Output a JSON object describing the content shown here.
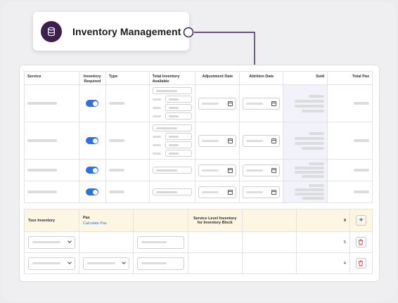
{
  "header": {
    "title": "Inventory Management",
    "icon": "database-icon",
    "accent": "#3d1f4e"
  },
  "inventory_table": {
    "columns": [
      "Service",
      "Inventory Required",
      "Type",
      "Total Inventory Available",
      "Adjustment Date",
      "Attrition Date",
      "Sold",
      "Total Pax"
    ],
    "rows": [
      {
        "inventory_required": true
      },
      {
        "inventory_required": true
      },
      {
        "inventory_required": true
      },
      {
        "inventory_required": true
      }
    ]
  },
  "tour_table": {
    "header": {
      "tour_inventory": "Tour Inventory",
      "pax": "Pax",
      "calculate_link": "Calculate Pax",
      "service_level": "Service Level Inventory for Inventory Block",
      "value": "9",
      "add_label": "+"
    },
    "rows": [
      {
        "value": "5"
      },
      {
        "value": "4"
      }
    ]
  },
  "colors": {
    "toggle_on": "#2f6fe0",
    "link": "#2f6fe0",
    "delete": "#d9363e",
    "header_bg": "#fdf6e3"
  }
}
